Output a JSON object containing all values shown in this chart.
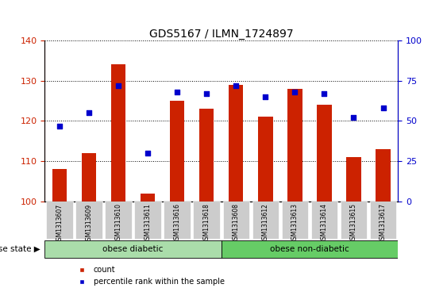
{
  "title": "GDS5167 / ILMN_1724897",
  "samples": [
    "GSM1313607",
    "GSM1313609",
    "GSM1313610",
    "GSM1313611",
    "GSM1313616",
    "GSM1313618",
    "GSM1313608",
    "GSM1313612",
    "GSM1313613",
    "GSM1313614",
    "GSM1313615",
    "GSM1313617"
  ],
  "counts": [
    108,
    112,
    134,
    102,
    125,
    123,
    129,
    121,
    128,
    124,
    111,
    113
  ],
  "percentile_ranks": [
    47,
    55,
    72,
    30,
    68,
    67,
    72,
    65,
    68,
    67,
    52,
    58
  ],
  "ylim_left": [
    100,
    140
  ],
  "ylim_right": [
    0,
    100
  ],
  "yticks_left": [
    100,
    110,
    120,
    130,
    140
  ],
  "yticks_right": [
    0,
    25,
    50,
    75,
    100
  ],
  "bar_color": "#cc2200",
  "dot_color": "#0000cc",
  "groups": [
    {
      "label": "obese diabetic",
      "indices": [
        0,
        5
      ],
      "color": "#aaddaa"
    },
    {
      "label": "obese non-diabetic",
      "indices": [
        6,
        11
      ],
      "color": "#66cc66"
    }
  ],
  "disease_state_label": "disease state",
  "legend_count_label": "count",
  "legend_percentile_label": "percentile rank within the sample",
  "tick_label_bg": "#cccccc",
  "left_axis_color": "#cc2200",
  "right_axis_color": "#0000cc"
}
